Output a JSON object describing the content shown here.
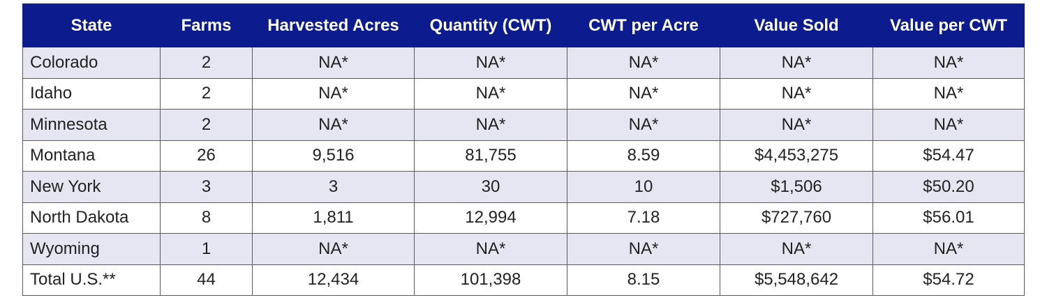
{
  "table": {
    "header": [
      "State",
      "Farms",
      "Harvested Acres",
      "Quantity (CWT)",
      "CWT per Acre",
      "Value Sold",
      "Value per CWT"
    ],
    "rows": [
      [
        "Colorado",
        "2",
        "NA*",
        "NA*",
        "NA*",
        "NA*",
        "NA*"
      ],
      [
        "Idaho",
        "2",
        "NA*",
        "NA*",
        "NA*",
        "NA*",
        "NA*"
      ],
      [
        "Minnesota",
        "2",
        "NA*",
        "NA*",
        "NA*",
        "NA*",
        "NA*"
      ],
      [
        "Montana",
        "26",
        "9,516",
        "81,755",
        "8.59",
        "$4,453,275",
        "$54.47"
      ],
      [
        "New York",
        "3",
        "3",
        "30",
        "10",
        "$1,506",
        "$50.20"
      ],
      [
        "North Dakota",
        "8",
        "1,811",
        "12,994",
        "7.18",
        "$727,760",
        "$56.01"
      ],
      [
        "Wyoming",
        "1",
        "NA*",
        "NA*",
        "NA*",
        "NA*",
        "NA*"
      ],
      [
        "Total U.S.**",
        "44",
        "12,434",
        "101,398",
        "8.15",
        "$5,548,642",
        "$54.72"
      ]
    ]
  }
}
